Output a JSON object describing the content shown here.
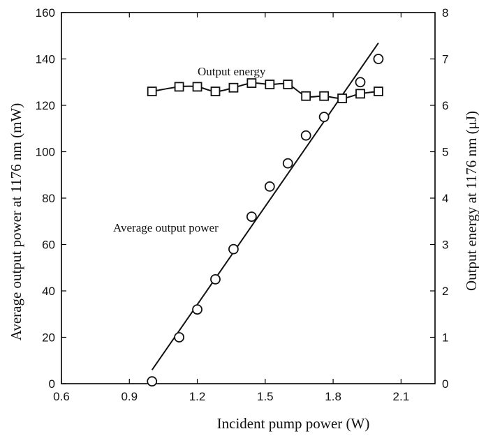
{
  "chart_data": {
    "type": "scatter",
    "xlabel": "Incident pump power (W)",
    "ylabel_left": "Average output power at 1176 nm (mW)",
    "ylabel_right": "Output energy at 1176 nm (μJ)",
    "xlim": [
      0.6,
      2.25
    ],
    "ylim_left": [
      0,
      160
    ],
    "ylim_right": [
      0,
      8
    ],
    "x_ticks": [
      "0.6",
      "0.9",
      "1.2",
      "1.5",
      "1.8",
      "2.1"
    ],
    "y_left_ticks": [
      "0",
      "20",
      "40",
      "60",
      "80",
      "100",
      "120",
      "140",
      "160"
    ],
    "y_right_ticks": [
      "0",
      "1",
      "2",
      "3",
      "4",
      "5",
      "6",
      "7",
      "8"
    ],
    "grid": false,
    "series": [
      {
        "name": "Average output power",
        "axis": "left",
        "marker": "circle",
        "x": [
          1.0,
          1.12,
          1.2,
          1.28,
          1.36,
          1.44,
          1.52,
          1.6,
          1.68,
          1.76,
          1.92,
          2.0
        ],
        "y": [
          1,
          20,
          32,
          45,
          58,
          72,
          85,
          95,
          107,
          115,
          130,
          140
        ]
      },
      {
        "name": "Output energy",
        "axis": "right",
        "marker": "square",
        "x": [
          1.0,
          1.12,
          1.2,
          1.28,
          1.36,
          1.44,
          1.52,
          1.6,
          1.68,
          1.76,
          1.84,
          1.92,
          2.0
        ],
        "y": [
          6.3,
          6.4,
          6.4,
          6.3,
          6.38,
          6.48,
          6.45,
          6.45,
          6.2,
          6.2,
          6.15,
          6.25,
          6.3
        ]
      }
    ],
    "annotations": [
      "Output energy",
      "Average output power"
    ]
  }
}
